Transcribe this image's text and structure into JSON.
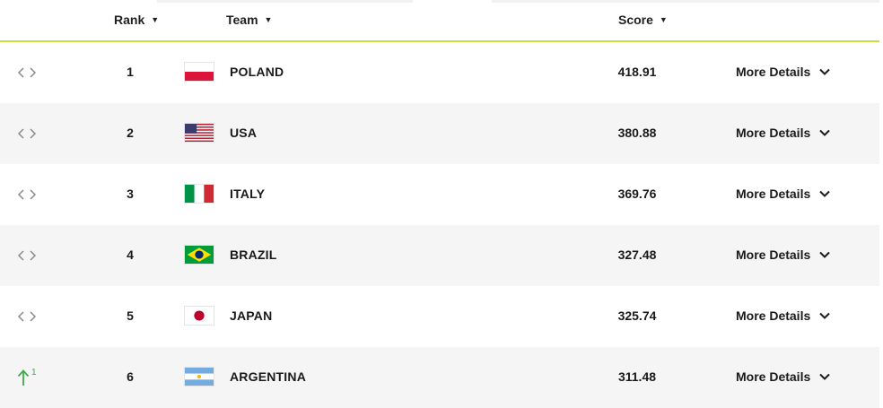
{
  "header": {
    "rank_label": "Rank",
    "team_label": "Team",
    "score_label": "Score"
  },
  "colors": {
    "header_underline": "#c8e13c",
    "up_arrow": "#3daa4a",
    "alt_row": "#f5f5f5"
  },
  "rows": [
    {
      "rank": "1",
      "team": "POLAND",
      "score": "418.91",
      "details": "More Details",
      "movement": "none",
      "flag": "poland-flag-icon"
    },
    {
      "rank": "2",
      "team": "USA",
      "score": "380.88",
      "details": "More Details",
      "movement": "none",
      "flag": "usa-flag-icon"
    },
    {
      "rank": "3",
      "team": "ITALY",
      "score": "369.76",
      "details": "More Details",
      "movement": "none",
      "flag": "italy-flag-icon"
    },
    {
      "rank": "4",
      "team": "BRAZIL",
      "score": "327.48",
      "details": "More Details",
      "movement": "none",
      "flag": "brazil-flag-icon"
    },
    {
      "rank": "5",
      "team": "JAPAN",
      "score": "325.74",
      "details": "More Details",
      "movement": "none",
      "flag": "japan-flag-icon"
    },
    {
      "rank": "6",
      "team": "ARGENTINA",
      "score": "311.48",
      "details": "More Details",
      "movement": "up",
      "movement_value": "1",
      "flag": "argentina-flag-icon"
    }
  ]
}
